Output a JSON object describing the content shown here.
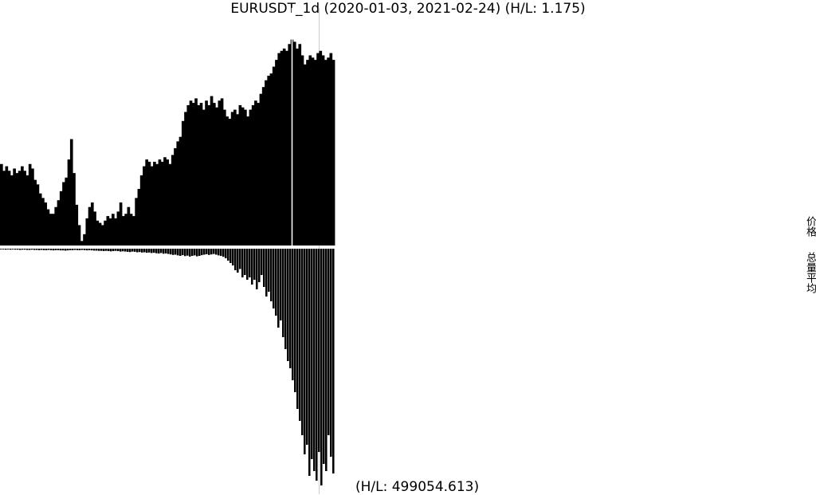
{
  "title": "EURUSDT_1d (2020-01-03, 2021-02-24) (H/L: 1.175)",
  "volume_hl_label": "(H/L: 499054.613)",
  "side_labels": {
    "price": "价格",
    "volume": "总量平均"
  },
  "colors": {
    "bars": "#000000",
    "background": "#ffffff",
    "separator": "#ffffff"
  },
  "chart_data": [
    {
      "type": "area",
      "panel": "price",
      "title": "EURUSDT_1d (2020-01-03, 2021-02-24) (H/L: 1.175)",
      "x_range": [
        "2020-01-03",
        "2021-02-24"
      ],
      "hl_ratio": 1.175,
      "y": [
        0.36,
        0.33,
        0.35,
        0.33,
        0.31,
        0.34,
        0.32,
        0.33,
        0.35,
        0.33,
        0.31,
        0.36,
        0.34,
        0.29,
        0.27,
        0.23,
        0.21,
        0.19,
        0.16,
        0.14,
        0.14,
        0.17,
        0.2,
        0.24,
        0.28,
        0.3,
        0.38,
        0.47,
        0.32,
        0.18,
        0.09,
        0.02,
        0.05,
        0.12,
        0.17,
        0.19,
        0.15,
        0.11,
        0.1,
        0.09,
        0.11,
        0.13,
        0.12,
        0.14,
        0.12,
        0.15,
        0.19,
        0.13,
        0.14,
        0.17,
        0.14,
        0.13,
        0.21,
        0.25,
        0.31,
        0.35,
        0.38,
        0.37,
        0.35,
        0.37,
        0.36,
        0.38,
        0.37,
        0.39,
        0.38,
        0.36,
        0.4,
        0.43,
        0.46,
        0.48,
        0.55,
        0.59,
        0.62,
        0.64,
        0.63,
        0.65,
        0.62,
        0.63,
        0.6,
        0.64,
        0.62,
        0.66,
        0.63,
        0.61,
        0.64,
        0.65,
        0.6,
        0.57,
        0.56,
        0.59,
        0.6,
        0.58,
        0.62,
        0.61,
        0.6,
        0.57,
        0.6,
        0.62,
        0.64,
        0.63,
        0.67,
        0.7,
        0.73,
        0.75,
        0.76,
        0.79,
        0.82,
        0.85,
        0.86,
        0.87,
        0.86,
        0.89,
        0.91,
        0.9,
        0.87,
        0.89,
        0.84,
        0.8,
        0.82,
        0.84,
        0.83,
        0.82,
        0.85,
        0.86,
        0.84,
        0.82,
        0.83,
        0.85,
        0.82
      ]
    },
    {
      "type": "bar",
      "panel": "volume",
      "title": "(H/L: 499054.613)",
      "hl_ratio": 499054.613,
      "y": [
        0.003,
        0.003,
        0.004,
        0.003,
        0.004,
        0.003,
        0.004,
        0.004,
        0.005,
        0.004,
        0.004,
        0.005,
        0.005,
        0.004,
        0.005,
        0.005,
        0.006,
        0.005,
        0.006,
        0.006,
        0.005,
        0.006,
        0.007,
        0.006,
        0.006,
        0.007,
        0.007,
        0.008,
        0.007,
        0.006,
        0.006,
        0.005,
        0.006,
        0.006,
        0.005,
        0.006,
        0.007,
        0.006,
        0.007,
        0.008,
        0.008,
        0.009,
        0.009,
        0.01,
        0.009,
        0.01,
        0.011,
        0.01,
        0.009,
        0.01,
        0.012,
        0.011,
        0.012,
        0.013,
        0.014,
        0.012,
        0.013,
        0.015,
        0.014,
        0.016,
        0.015,
        0.017,
        0.016,
        0.018,
        0.017,
        0.019,
        0.02,
        0.018,
        0.021,
        0.02,
        0.022,
        0.024,
        0.026,
        0.025,
        0.028,
        0.03,
        0.027,
        0.031,
        0.029,
        0.033,
        0.03,
        0.028,
        0.032,
        0.03,
        0.027,
        0.025,
        0.023,
        0.026,
        0.024,
        0.022,
        0.025,
        0.028,
        0.03,
        0.034,
        0.04,
        0.05,
        0.06,
        0.07,
        0.09,
        0.1,
        0.085,
        0.12,
        0.11,
        0.13,
        0.12,
        0.15,
        0.13,
        0.17,
        0.14,
        0.11,
        0.16,
        0.2,
        0.18,
        0.22,
        0.25,
        0.28,
        0.33,
        0.3,
        0.37,
        0.42,
        0.47,
        0.5,
        0.55,
        0.6,
        0.67,
        0.72,
        0.78,
        0.86,
        0.82,
        0.95,
        0.88,
        0.93,
        0.97,
        0.85,
        0.99,
        0.9,
        0.93,
        0.78,
        0.87,
        0.94
      ]
    }
  ]
}
